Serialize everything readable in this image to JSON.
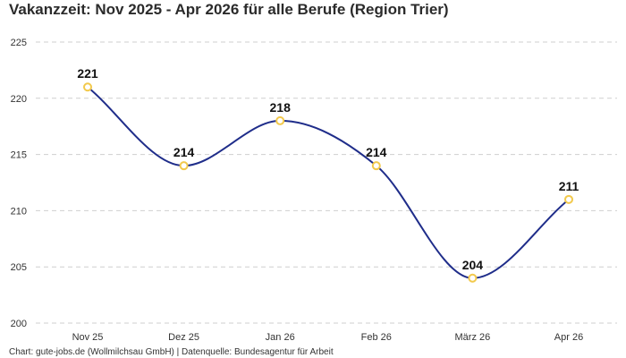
{
  "chart_data": {
    "type": "line",
    "title": "Vakanzzeit: Nov 2025 - Apr 2026 für alle Berufe (Region Trier)",
    "categories": [
      "Nov 25",
      "Dez 25",
      "Jan 26",
      "Feb 26",
      "März 26",
      "Apr 26"
    ],
    "series": [
      {
        "values": [
          221,
          214,
          218,
          214,
          204,
          211
        ]
      }
    ],
    "ylim": [
      200,
      225
    ],
    "yticks": [
      "200",
      "205",
      "210",
      "215",
      "220",
      "225"
    ],
    "grid": true,
    "legend": "none",
    "colors": {
      "line": "#1f2d8a",
      "marker_stroke": "#f2c94c",
      "marker_fill": "#ffffff"
    }
  },
  "footer": "Chart: gute-jobs.de (Wollmilchsau GmbH) | Datenquelle: Bundesagentur für Arbeit"
}
